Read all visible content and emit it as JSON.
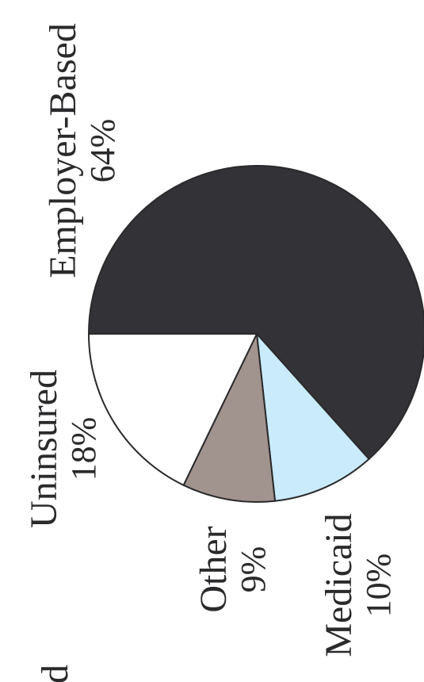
{
  "chart_data": {
    "type": "pie",
    "rotated": "90deg-counterclockwise",
    "slices": [
      {
        "label": "Employer-Based",
        "value": 64,
        "display": "64%",
        "color": "#333236"
      },
      {
        "label": "Medicaid",
        "value": 10,
        "display": "10%",
        "color": "#c9ebfb"
      },
      {
        "label": "Other",
        "value": 9,
        "display": "9%",
        "color": "#a1948f"
      },
      {
        "label": "Uninsured",
        "value": 18,
        "display": "18%",
        "color": "#ffffff"
      }
    ],
    "cropped_text": "d"
  }
}
